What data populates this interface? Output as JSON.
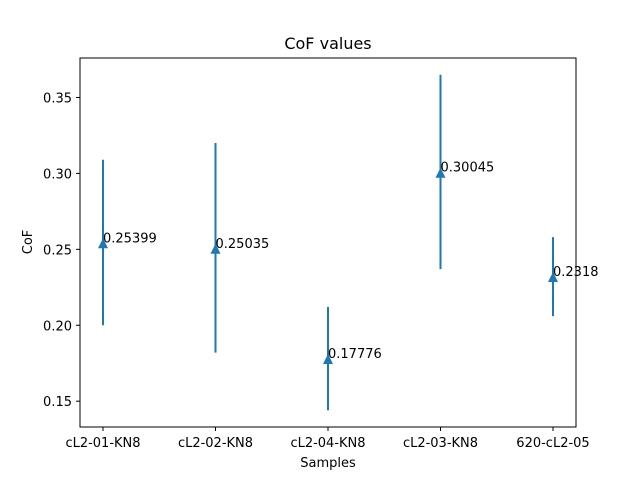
{
  "chart_data": {
    "type": "scatter",
    "title": "CoF values",
    "xlabel": "Samples",
    "ylabel": "CoF",
    "categories": [
      "cL2-01-KN8",
      "cL2-02-KN8",
      "cL2-04-KN8",
      "cL2-03-KN8",
      "620-cL2-05"
    ],
    "values": [
      0.25399,
      0.25035,
      0.17776,
      0.30045,
      0.2318
    ],
    "error_low": [
      0.2,
      0.182,
      0.144,
      0.237,
      0.206
    ],
    "error_high": [
      0.309,
      0.32,
      0.212,
      0.365,
      0.258
    ],
    "data_labels": [
      "0.25399",
      "0.25035",
      "0.17776",
      "0.30045",
      "0.2318"
    ],
    "ylim": [
      0.133,
      0.376
    ],
    "yticks": [
      0.15,
      0.2,
      0.25,
      0.3,
      0.35
    ],
    "ytick_labels": [
      "0.15",
      "0.20",
      "0.25",
      "0.30",
      "0.35"
    ],
    "marker": "triangle-up",
    "grid": false,
    "color": "#1f77b4"
  }
}
